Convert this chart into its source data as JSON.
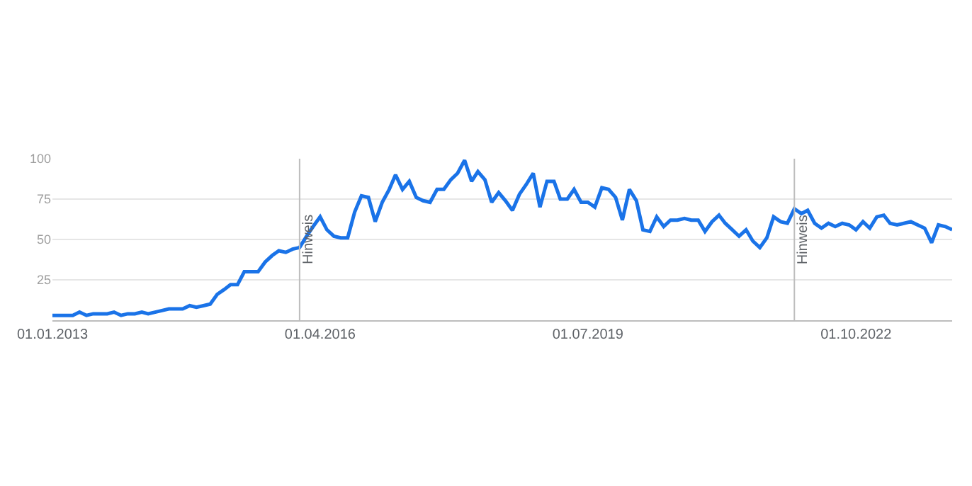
{
  "chart_data": {
    "type": "line",
    "x": [
      "2013-01",
      "2013-02",
      "2013-03",
      "2013-04",
      "2013-05",
      "2013-06",
      "2013-07",
      "2013-08",
      "2013-09",
      "2013-10",
      "2013-11",
      "2013-12",
      "2014-01",
      "2014-02",
      "2014-03",
      "2014-04",
      "2014-05",
      "2014-06",
      "2014-07",
      "2014-08",
      "2014-09",
      "2014-10",
      "2014-11",
      "2014-12",
      "2015-01",
      "2015-02",
      "2015-03",
      "2015-04",
      "2015-05",
      "2015-06",
      "2015-07",
      "2015-08",
      "2015-09",
      "2015-10",
      "2015-11",
      "2015-12",
      "2016-01",
      "2016-02",
      "2016-03",
      "2016-04",
      "2016-05",
      "2016-06",
      "2016-07",
      "2016-08",
      "2016-09",
      "2016-10",
      "2016-11",
      "2016-12",
      "2017-01",
      "2017-02",
      "2017-03",
      "2017-04",
      "2017-05",
      "2017-06",
      "2017-07",
      "2017-08",
      "2017-09",
      "2017-10",
      "2017-11",
      "2017-12",
      "2018-01",
      "2018-02",
      "2018-03",
      "2018-04",
      "2018-05",
      "2018-06",
      "2018-07",
      "2018-08",
      "2018-09",
      "2018-10",
      "2018-11",
      "2018-12",
      "2019-01",
      "2019-02",
      "2019-03",
      "2019-04",
      "2019-05",
      "2019-06",
      "2019-07",
      "2019-08",
      "2019-09",
      "2019-10",
      "2019-11",
      "2019-12",
      "2020-01",
      "2020-02",
      "2020-03",
      "2020-04",
      "2020-05",
      "2020-06",
      "2020-07",
      "2020-08",
      "2020-09",
      "2020-10",
      "2020-11",
      "2020-12",
      "2021-01",
      "2021-02",
      "2021-03",
      "2021-04",
      "2021-05",
      "2021-06",
      "2021-07",
      "2021-08",
      "2021-09",
      "2021-10",
      "2021-11",
      "2021-12",
      "2022-01",
      "2022-02",
      "2022-03",
      "2022-04",
      "2022-05",
      "2022-06",
      "2022-07",
      "2022-08",
      "2022-09",
      "2022-10",
      "2022-11",
      "2022-12",
      "2023-01",
      "2023-02",
      "2023-03",
      "2023-04",
      "2023-05",
      "2023-06",
      "2023-07",
      "2023-08",
      "2023-09",
      "2023-10",
      "2023-11",
      "2023-12"
    ],
    "series": [
      {
        "color": "#1a73e8",
        "values": [
          3,
          3,
          3,
          3,
          5,
          3,
          4,
          4,
          4,
          5,
          3,
          4,
          4,
          5,
          4,
          5,
          6,
          7,
          7,
          7,
          9,
          8,
          9,
          10,
          16,
          19,
          22,
          22,
          30,
          30,
          30,
          36,
          40,
          43,
          42,
          44,
          45,
          52,
          58,
          64,
          56,
          52,
          51,
          51,
          67,
          77,
          76,
          61,
          73,
          81,
          90,
          81,
          86,
          76,
          74,
          73,
          81,
          81,
          87,
          91,
          99,
          86,
          92,
          87,
          73,
          79,
          74,
          68,
          78,
          84,
          91,
          70,
          86,
          86,
          75,
          75,
          81,
          73,
          73,
          70,
          82,
          81,
          76,
          62,
          81,
          74,
          56,
          55,
          64,
          58,
          62,
          62,
          63,
          62,
          62,
          55,
          61,
          65,
          60,
          56,
          52,
          56,
          49,
          45,
          51,
          64,
          61,
          60,
          69,
          66,
          68,
          60,
          57,
          60,
          58,
          60,
          59,
          56,
          61,
          57,
          64,
          65,
          60,
          59,
          60,
          61,
          59,
          57,
          48,
          59,
          58,
          56
        ]
      }
    ],
    "xlim": [
      "2013-01-01",
      "2023-12-01"
    ],
    "xticks": [
      {
        "value": "2013-01-01",
        "label": "01.01.2013"
      },
      {
        "value": "2016-04-01",
        "label": "01.04.2016"
      },
      {
        "value": "2019-07-01",
        "label": "01.07.2019"
      },
      {
        "value": "2022-10-01",
        "label": "01.10.2022"
      }
    ],
    "ylim": [
      0,
      100
    ],
    "yticks": [
      25,
      50,
      75,
      100
    ],
    "grid": "y",
    "marker": "none",
    "line_style": "solid",
    "ref_lines": [
      {
        "axis": "x",
        "value": "2016-01-01",
        "label": "Hinweis",
        "color": "#bdbdbd"
      },
      {
        "axis": "x",
        "value": "2022-01-01",
        "label": "Hinweis",
        "color": "#bdbdbd"
      }
    ]
  }
}
